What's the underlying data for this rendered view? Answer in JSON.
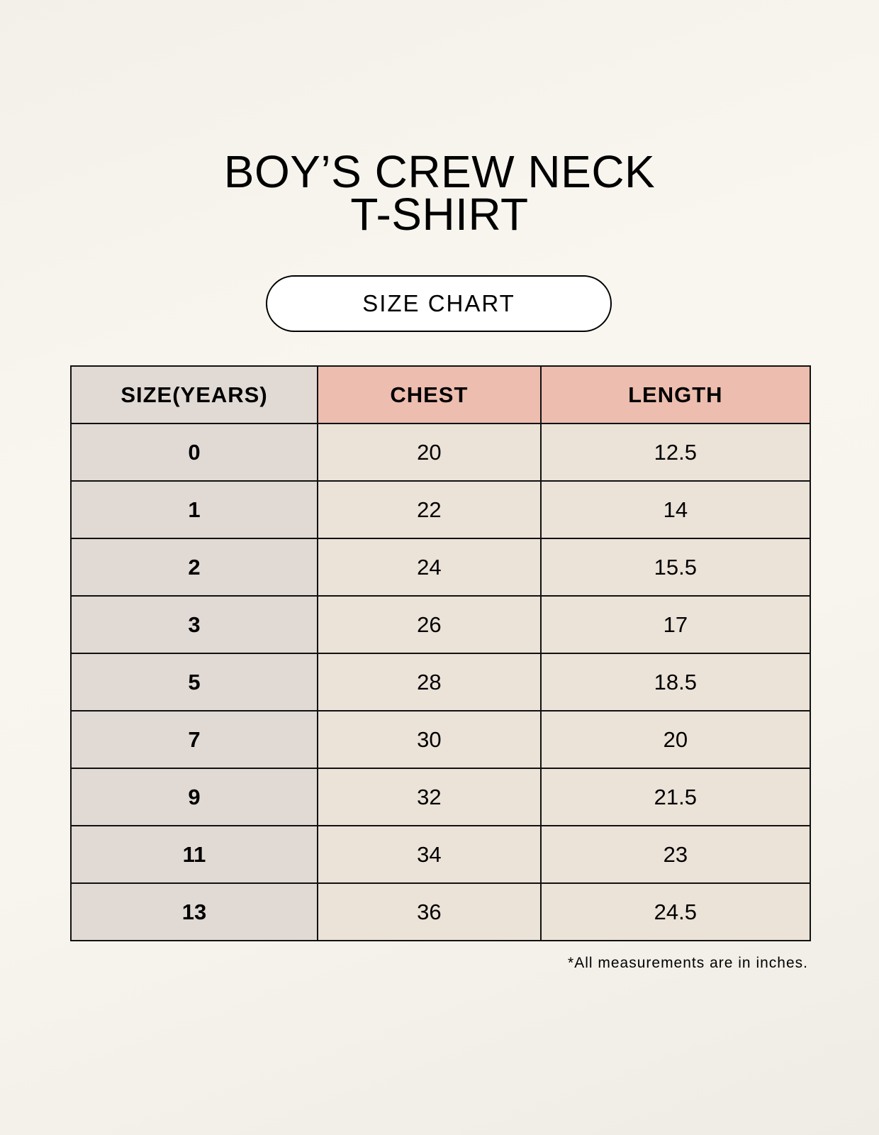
{
  "title_line1": "BOY’S CREW NECK",
  "title_line2": "T-SHIRT",
  "badge": "SIZE CHART",
  "table": {
    "headers": [
      "SIZE(YEARS)",
      "CHEST",
      "LENGTH"
    ],
    "rows": [
      [
        "0",
        "20",
        "12.5"
      ],
      [
        "1",
        "22",
        "14"
      ],
      [
        "2",
        "24",
        "15.5"
      ],
      [
        "3",
        "26",
        "17"
      ],
      [
        "5",
        "28",
        "18.5"
      ],
      [
        "7",
        "30",
        "20"
      ],
      [
        "9",
        "32",
        "21.5"
      ],
      [
        "11",
        "34",
        "23"
      ],
      [
        "13",
        "36",
        "24.5"
      ]
    ]
  },
  "footnote": "*All measurements are in inches.",
  "colors": {
    "size_column": "#e1d9d4",
    "header_accent": "#edbdaf",
    "cell": "#ebe2d8"
  }
}
